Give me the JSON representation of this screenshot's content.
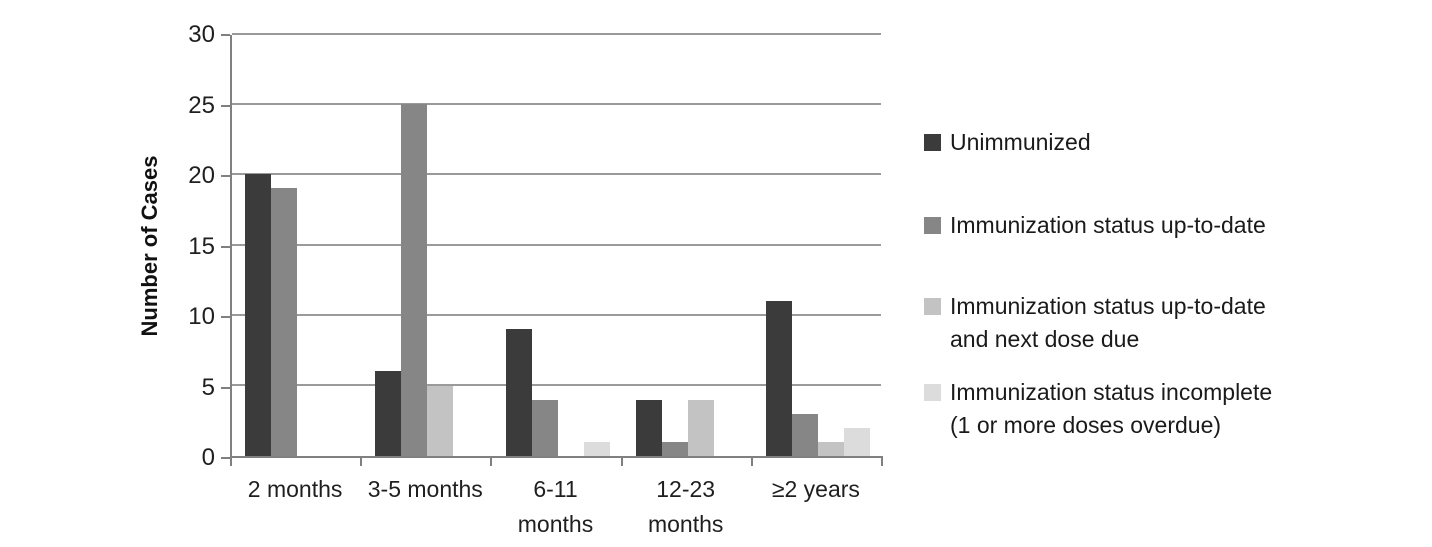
{
  "chart_data": {
    "type": "bar",
    "title": "",
    "xlabel": "",
    "ylabel": "Number of Cases",
    "categories": [
      "2 months",
      "3-5 months",
      "6-11\nmonths",
      "12-23\nmonths",
      "≥2 years"
    ],
    "series": [
      {
        "name": "Unimmunized",
        "color": "#3B3B3B",
        "values": [
          20,
          6,
          9,
          4,
          11
        ]
      },
      {
        "name": "Immunization status up-to-date",
        "color": "#868686",
        "values": [
          19,
          25,
          4,
          1,
          3
        ]
      },
      {
        "name": "Immunization status up-to-date\nand next dose due",
        "color": "#C3C3C3",
        "values": [
          0,
          5,
          0,
          4,
          1
        ]
      },
      {
        "name": "Immunization status incomplete\n(1 or more doses overdue)",
        "color": "#DCDCDC",
        "values": [
          0,
          0,
          1,
          0,
          2
        ]
      }
    ],
    "ylim": [
      0,
      30
    ],
    "yticks": [
      0,
      5,
      10,
      15,
      20,
      25,
      30
    ],
    "grid": true,
    "legend_position": "right",
    "colors": {
      "gridline": "#9A9A9A",
      "axis": "#808080",
      "text": "#1f1f1f"
    }
  }
}
